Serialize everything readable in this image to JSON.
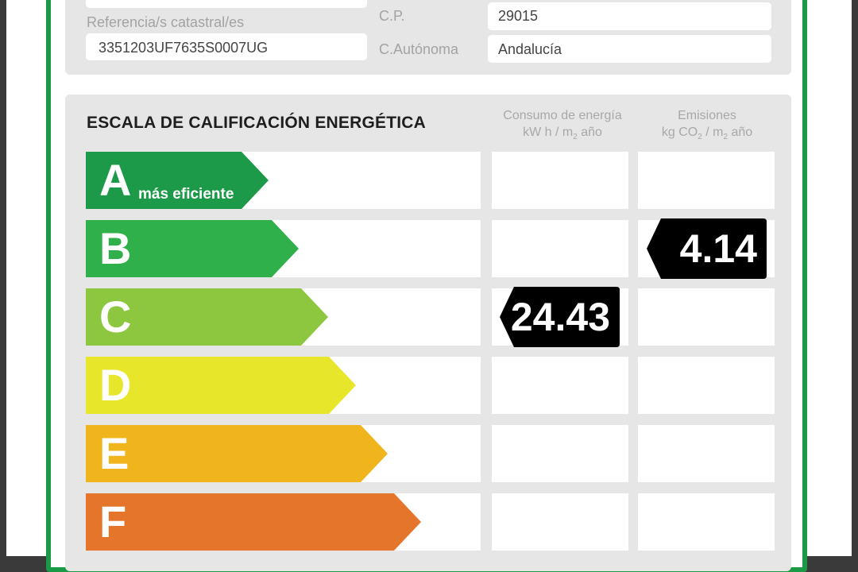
{
  "header_fields": {
    "referencia_label": "Referencia/s catastral/es",
    "referencia_value": "3351203UF7635S0007UG",
    "cp_label": "C.P.",
    "cp_value": "29015",
    "autonoma_label": "C.Autónoma",
    "autonoma_value": "Andalucía"
  },
  "scale": {
    "title": "ESCALA DE CALIFICACIÓN ENERGÉTICA",
    "consumo_header_1": "Consumo de energía",
    "consumo_header_2a": "kW h / m",
    "consumo_header_2sub": "2",
    "consumo_header_2b": " año",
    "emisiones_header_1": "Emisiones",
    "emisiones_header_2a": "kg CO",
    "emisiones_header_2sub1": "2",
    "emisiones_header_2b": " / m",
    "emisiones_header_2sub2": "2",
    "emisiones_header_2c": " año",
    "ratings": [
      {
        "letter": "A",
        "sublabel": "más eficiente",
        "color": "#1c9a4a"
      },
      {
        "letter": "B",
        "sublabel": "",
        "color": "#2fb04a"
      },
      {
        "letter": "C",
        "sublabel": "",
        "color": "#8dc63f"
      },
      {
        "letter": "D",
        "sublabel": "",
        "color": "#e8e62a"
      },
      {
        "letter": "E",
        "sublabel": "",
        "color": "#f0b51c"
      },
      {
        "letter": "F",
        "sublabel": "",
        "color": "#e5752a"
      }
    ],
    "consumo_value": "24.43",
    "consumo_rating": "C",
    "emisiones_value": "4.14",
    "emisiones_rating": "B"
  },
  "colors": {
    "border_green": "#1b9a45",
    "badge": "#000000",
    "panel": "#e6e6e6"
  }
}
